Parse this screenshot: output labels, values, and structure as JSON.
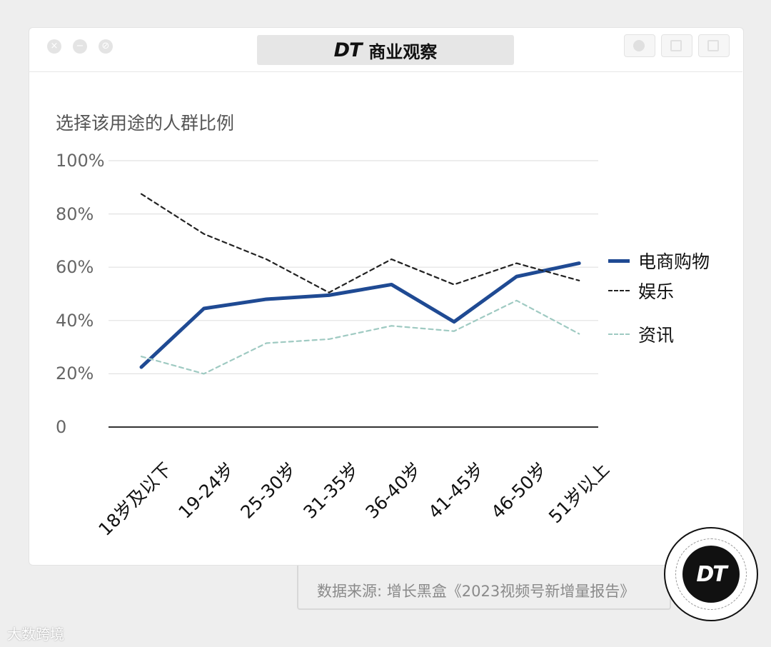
{
  "window": {
    "brand_logo": "DT",
    "title": "商业观察",
    "buttons": [
      "×",
      "−",
      "⊘"
    ]
  },
  "chart_data": {
    "type": "line",
    "ylabel": "选择该用途的人群比例",
    "ylim": [
      0,
      100
    ],
    "yticks": [
      "0",
      "20%",
      "40%",
      "60%",
      "80%",
      "100%"
    ],
    "categories": [
      "18岁及以下",
      "19-24岁",
      "25-30岁",
      "31-35岁",
      "36-40岁",
      "41-45岁",
      "46-50岁",
      "51岁以上"
    ],
    "series": [
      {
        "name": "电商购物",
        "style": "solid",
        "color": "#1f4a93",
        "values": [
          22.5,
          44.5,
          48,
          49.5,
          53.5,
          39.5,
          56.5,
          61.5
        ]
      },
      {
        "name": "娱乐",
        "style": "dashed",
        "color": "#222222",
        "values": [
          87.5,
          72.5,
          63,
          50.5,
          63,
          53.5,
          61.5,
          55
        ]
      },
      {
        "name": "资讯",
        "style": "dashed",
        "color": "#9fcac2",
        "values": [
          26.5,
          20,
          31.5,
          33,
          38,
          36,
          47.5,
          35
        ]
      }
    ],
    "grid": true,
    "legend": "right"
  },
  "source": "数据来源: 增长黑盒《2023视频号新增量报告》",
  "badge": "DT",
  "watermark": "大数跨境"
}
